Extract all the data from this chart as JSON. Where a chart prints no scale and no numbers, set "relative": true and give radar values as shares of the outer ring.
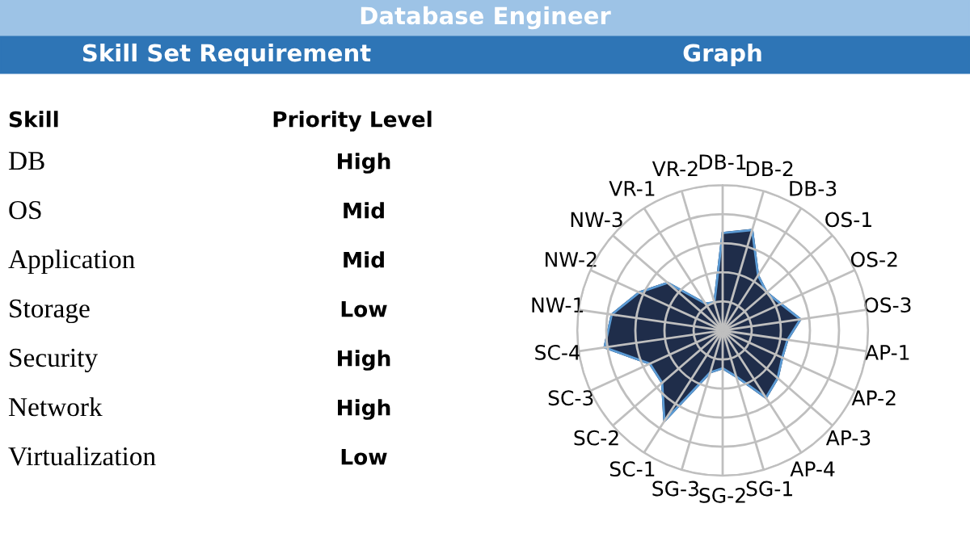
{
  "chart_data": [
    {
      "type": "other",
      "title": "Database Engineer",
      "subtitle": "Skill Set Requirement",
      "annotations": [
        "Skill",
        "Priority Level",
        "DB",
        "High",
        "OS",
        "Mid",
        "Application",
        "Mid",
        "Storage",
        "Low",
        "Security",
        "High",
        "Network",
        "High",
        "Virtualization",
        "Low"
      ]
    },
    {
      "type": "radar",
      "title": "Graph",
      "relative": true,
      "grid": true,
      "categories": [
        "DB-1",
        "DB-2",
        "DB-3",
        "OS-1",
        "OS-2",
        "OS-3",
        "AP-1",
        "AP-2",
        "AP-3",
        "AP-4",
        "SG-1",
        "SG-2",
        "SG-3",
        "SC-1",
        "SC-2",
        "SC-3",
        "SC-4",
        "NW-1",
        "NW-2",
        "NW-3",
        "VR-1",
        "VR-2"
      ],
      "series": [
        {
          "color": "#1f2d4a",
          "values": [
            0.67,
            0.72,
            0.45,
            0.4,
            0.44,
            0.54,
            0.45,
            0.45,
            0.5,
            0.55,
            0.33,
            0.26,
            0.3,
            0.74,
            0.55,
            0.55,
            0.82,
            0.77,
            0.63,
            0.5,
            0.22,
            0.2
          ]
        }
      ]
    }
  ]
}
